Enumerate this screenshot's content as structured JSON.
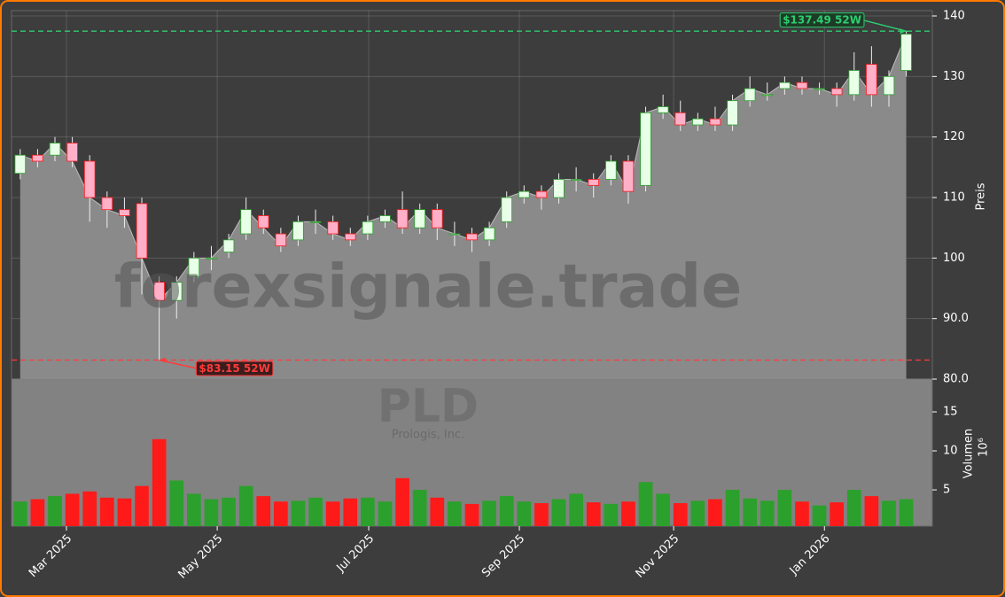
{
  "chart_data": {
    "type": "candlestick",
    "xlim": [
      -0.5,
      52.5
    ],
    "xticks": [
      {
        "value": 2.66,
        "label": "Mar 2025"
      },
      {
        "value": 11.34,
        "label": "May 2025"
      },
      {
        "value": 20.06,
        "label": "Jul 2025"
      },
      {
        "value": 28.73,
        "label": "Sep 2025"
      },
      {
        "value": 37.61,
        "label": "Nov 2025"
      },
      {
        "value": 46.29,
        "label": "Jan 2026"
      }
    ],
    "ylim": [
      80,
      140.88
    ],
    "yticks": [
      {
        "value": 80,
        "label": "80.0"
      },
      {
        "value": 90,
        "label": "90.0"
      },
      100,
      110,
      120,
      130,
      140
    ],
    "ylabel": "Preis",
    "open": [
      114,
      117,
      117,
      119,
      116,
      110,
      108,
      109,
      96,
      93,
      97,
      100,
      101,
      104,
      107,
      104,
      103,
      106,
      106,
      104,
      104,
      106,
      108,
      105,
      108,
      104,
      104,
      103,
      106,
      110,
      111,
      110,
      113,
      113,
      113,
      116,
      112,
      124,
      124,
      122,
      123,
      122,
      126,
      127,
      128,
      129,
      128,
      128,
      127,
      132,
      127,
      131
    ],
    "high": [
      118,
      118,
      120,
      120,
      117,
      111,
      110,
      110,
      97,
      97,
      101,
      102,
      104,
      110,
      108,
      105,
      107,
      108,
      107,
      105,
      107,
      108,
      111,
      109,
      109,
      106,
      105,
      106,
      111,
      112,
      112,
      114,
      115,
      114,
      117,
      117,
      125,
      127,
      126,
      124,
      125,
      127,
      130,
      129,
      130,
      130,
      129,
      129,
      134,
      135,
      131,
      137.49
    ],
    "low": [
      113,
      115,
      116,
      115,
      106,
      105,
      105,
      94,
      83.15,
      90,
      96,
      98,
      100,
      103,
      104,
      101,
      102,
      104,
      103,
      102,
      103,
      105,
      104,
      104,
      103,
      102,
      101,
      102,
      105,
      109,
      108,
      109,
      111,
      110,
      112,
      109,
      111,
      123,
      121,
      121,
      121,
      121,
      125,
      126,
      127,
      127,
      127,
      125,
      126,
      125,
      125,
      130
    ],
    "close": [
      117,
      116,
      119,
      116,
      110,
      108,
      107,
      100,
      93,
      96,
      100,
      100,
      103,
      108,
      105,
      102,
      106,
      106,
      104,
      103,
      106,
      107,
      105,
      108,
      105,
      104,
      103,
      105,
      110,
      111,
      110,
      113,
      113,
      112,
      116,
      111,
      124,
      125,
      122,
      123,
      122,
      126,
      128,
      127,
      129,
      128,
      128,
      127,
      131,
      127,
      130,
      137
    ],
    "up_color": "#2ca02c",
    "down_color": "#ff1a1a",
    "volume": [
      3.5,
      3.8,
      4.2,
      4.5,
      4.8,
      4.0,
      3.9,
      5.5,
      11.5,
      6.2,
      4.5,
      3.8,
      4.0,
      5.5,
      4.2,
      3.5,
      3.6,
      4.0,
      3.5,
      3.9,
      4.0,
      3.5,
      6.5,
      5.0,
      4.0,
      3.5,
      3.2,
      3.6,
      4.2,
      3.5,
      3.3,
      3.8,
      4.5,
      3.4,
      3.2,
      3.5,
      6.0,
      4.5,
      3.3,
      3.6,
      3.8,
      5.0,
      3.9,
      3.6,
      5.0,
      3.5,
      3.0,
      3.4,
      5.0,
      4.2,
      3.6,
      3.8
    ],
    "volume_ylim": [
      0.35,
      19.2
    ],
    "volume_yticks": [
      5,
      10,
      15
    ],
    "volume_label": "Volumen",
    "volume_unit": "10⁶",
    "annotations": [
      {
        "text": "$137.49 52W",
        "value": 137.49,
        "color": "#2ecc71"
      },
      {
        "text": "$83.15 52W",
        "value": 83.15,
        "color": "#ff3b3b"
      }
    ],
    "watermark": {
      "site": "forexsignale.trade",
      "symbol": "PLD",
      "company": "Prologis, Inc."
    }
  }
}
